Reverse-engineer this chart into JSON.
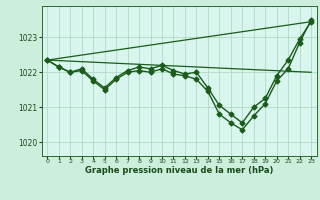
{
  "title": "Graphe pression niveau de la mer (hPa)",
  "background_color": "#cceedd",
  "plot_bg_color": "#d8f5ee",
  "line_color": "#1a5c1a",
  "grid_color": "#aad4c0",
  "xlim": [
    -0.5,
    23.5
  ],
  "ylim": [
    1019.6,
    1023.9
  ],
  "yticks": [
    1020,
    1021,
    1022,
    1023
  ],
  "xticks": [
    0,
    1,
    2,
    3,
    4,
    5,
    6,
    7,
    8,
    9,
    10,
    11,
    12,
    13,
    14,
    15,
    16,
    17,
    18,
    19,
    20,
    21,
    22,
    23
  ],
  "series": [
    {
      "x": [
        0,
        1,
        2,
        3,
        4,
        5,
        6,
        7,
        8,
        9,
        10,
        11,
        12,
        13,
        14,
        15,
        16,
        17,
        18,
        19,
        20,
        21,
        22,
        23
      ],
      "y": [
        1022.35,
        1022.15,
        1022.0,
        1022.1,
        1021.8,
        1021.55,
        1021.85,
        1022.05,
        1022.15,
        1022.1,
        1022.2,
        1022.05,
        1021.95,
        1022.0,
        1021.55,
        1021.05,
        1020.8,
        1020.55,
        1021.0,
        1021.25,
        1021.9,
        1022.35,
        1022.95,
        1023.45
      ],
      "marker": "D",
      "markersize": 2.5,
      "linewidth": 1.0,
      "zorder": 3
    },
    {
      "x": [
        0,
        23
      ],
      "y": [
        1022.35,
        1023.45
      ],
      "marker": null,
      "markersize": 0,
      "linewidth": 0.9,
      "zorder": 2
    },
    {
      "x": [
        0,
        23
      ],
      "y": [
        1022.35,
        1022.0
      ],
      "marker": null,
      "markersize": 0,
      "linewidth": 0.9,
      "zorder": 2
    },
    {
      "x": [
        0,
        1,
        2,
        3,
        4,
        5,
        6,
        7,
        8,
        9,
        10,
        11,
        12,
        13,
        14,
        15,
        16,
        17,
        18,
        19,
        20,
        21,
        22,
        23
      ],
      "y": [
        1022.35,
        1022.15,
        1022.0,
        1022.05,
        1021.75,
        1021.5,
        1021.8,
        1022.0,
        1022.05,
        1022.0,
        1022.1,
        1021.95,
        1021.9,
        1021.8,
        1021.45,
        1020.8,
        1020.55,
        1020.35,
        1020.75,
        1021.1,
        1021.75,
        1022.1,
        1022.85,
        1023.5
      ],
      "marker": "D",
      "markersize": 2.5,
      "linewidth": 1.0,
      "zorder": 3
    }
  ]
}
